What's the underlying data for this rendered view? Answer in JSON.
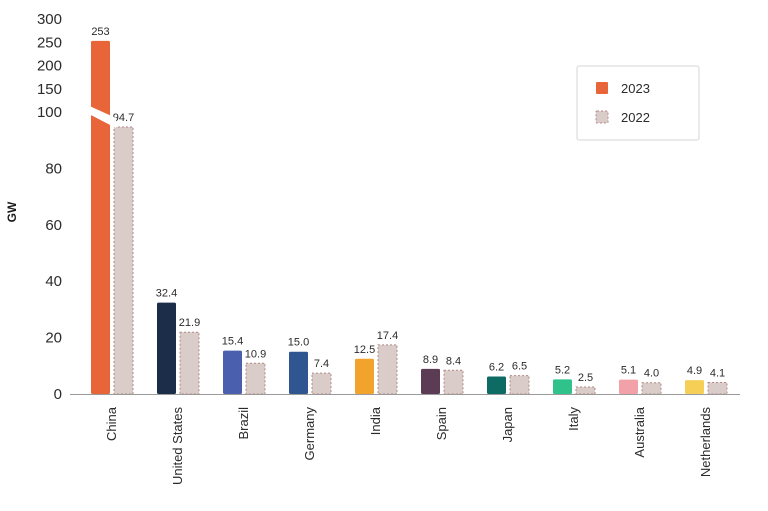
{
  "chart_data": {
    "type": "bar",
    "ylabel": "GW",
    "yticks_lower": [
      0,
      20,
      40,
      60,
      80,
      100
    ],
    "yticks_upper": [
      150,
      200,
      250,
      300
    ],
    "axis_break": [
      100,
      150
    ],
    "ylim": [
      0,
      300
    ],
    "categories": [
      "China",
      "United States",
      "Brazil",
      "Germany",
      "India",
      "Spain",
      "Japan",
      "Italy",
      "Australia",
      "Netherlands"
    ],
    "series": [
      {
        "name": "2023",
        "values": [
          253,
          32.4,
          15.4,
          15.0,
          12.5,
          8.9,
          6.2,
          5.2,
          5.1,
          4.9
        ],
        "labels": [
          "253",
          "32.4",
          "15.4",
          "15.0",
          "12.5",
          "8.9",
          "6.2",
          "5.2",
          "5.1",
          "4.9"
        ]
      },
      {
        "name": "2022",
        "values": [
          94.7,
          21.9,
          10.9,
          7.4,
          17.4,
          8.4,
          6.5,
          2.5,
          4.0,
          4.1
        ],
        "labels": [
          "94.7",
          "21.9",
          "10.9",
          "7.4",
          "17.4",
          "8.4",
          "6.5",
          "2.5",
          "4.0",
          "4.1"
        ]
      }
    ],
    "bar_colors_2023": [
      "#e8653a",
      "#1c2d4a",
      "#4a5fae",
      "#2f5690",
      "#f2a32c",
      "#5c3b55",
      "#0e6b63",
      "#2fc28a",
      "#f2a1a9",
      "#f6cf56"
    ],
    "bar_color_2022": "#d9ccc9",
    "legend_swatch_2023": "#e8653a",
    "legend_position": "top-right",
    "grid": false
  }
}
